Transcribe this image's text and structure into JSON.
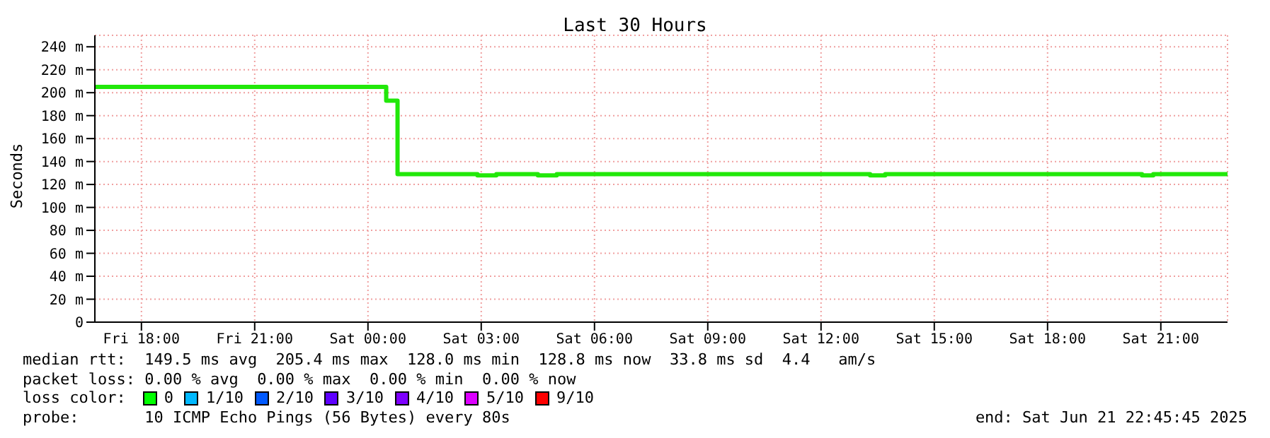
{
  "chart_data": {
    "type": "step",
    "title": "Last 30 Hours",
    "ylabel": "Seconds",
    "x": [
      "2025-06-20T16:46",
      "2025-06-20T17:30",
      "2025-06-20T18:18",
      "2025-06-20T19:12",
      "2025-06-20T20:00",
      "2025-06-20T21:00",
      "2025-06-20T21:48",
      "2025-06-20T22:36",
      "2025-06-20T23:30",
      "2025-06-21T00:06",
      "2025-06-21T00:29",
      "2025-06-21T00:47",
      "2025-06-21T01:30",
      "2025-06-21T02:18",
      "2025-06-21T02:54",
      "2025-06-21T03:24",
      "2025-06-21T04:00",
      "2025-06-21T04:30",
      "2025-06-21T05:00",
      "2025-06-21T05:24",
      "2025-06-21T06:12",
      "2025-06-21T07:00",
      "2025-06-21T09:00",
      "2025-06-21T11:00",
      "2025-06-21T13:18",
      "2025-06-21T13:42",
      "2025-06-21T15:00",
      "2025-06-21T17:00",
      "2025-06-21T18:30",
      "2025-06-21T19:00",
      "2025-06-21T20:30",
      "2025-06-21T20:48",
      "2025-06-21T22:46"
    ],
    "series": [
      {
        "color": "#22e80a",
        "values": [
          205,
          205,
          205,
          205,
          205,
          205,
          205,
          205,
          205,
          205,
          193,
          129,
          129,
          129,
          128,
          129,
          129,
          128,
          129,
          129,
          129,
          129,
          129,
          129,
          128,
          129,
          129,
          129,
          129,
          129,
          128,
          129,
          129
        ]
      }
    ],
    "xlim": [
      "2025-06-20T16:46",
      "2025-06-21T22:46"
    ],
    "xticks": [
      {
        "value": "2025-06-20T18:00",
        "label": "Fri 18:00"
      },
      {
        "value": "2025-06-20T21:00",
        "label": "Fri 21:00"
      },
      {
        "value": "2025-06-21T00:00",
        "label": "Sat 00:00"
      },
      {
        "value": "2025-06-21T03:00",
        "label": "Sat 03:00"
      },
      {
        "value": "2025-06-21T06:00",
        "label": "Sat 06:00"
      },
      {
        "value": "2025-06-21T09:00",
        "label": "Sat 09:00"
      },
      {
        "value": "2025-06-21T12:00",
        "label": "Sat 12:00"
      },
      {
        "value": "2025-06-21T15:00",
        "label": "Sat 15:00"
      },
      {
        "value": "2025-06-21T18:00",
        "label": "Sat 18:00"
      },
      {
        "value": "2025-06-21T21:00",
        "label": "Sat 21:00"
      }
    ],
    "ylim": [
      0,
      250
    ],
    "yticks": [
      0,
      {
        "value": 20,
        "label": "20 m"
      },
      {
        "value": 40,
        "label": "40 m"
      },
      {
        "value": 60,
        "label": "60 m"
      },
      {
        "value": 80,
        "label": "80 m"
      },
      {
        "value": 100,
        "label": "100 m"
      },
      {
        "value": 120,
        "label": "120 m"
      },
      {
        "value": 140,
        "label": "140 m"
      },
      {
        "value": 160,
        "label": "160 m"
      },
      {
        "value": 180,
        "label": "180 m"
      },
      {
        "value": 200,
        "label": "200 m"
      },
      {
        "value": 220,
        "label": "220 m"
      },
      {
        "value": 240,
        "label": "240 m"
      }
    ],
    "grid": true,
    "marker": "none",
    "line_style": "solid",
    "annotations": [
      "median rtt:  149.5 ms avg  205.4 ms max  128.0 ms min  128.8 ms now  33.8 ms sd  4.4   am/s",
      "packet loss: 0.00 % avg  0.00 % max  0.00 % min  0.00 % now",
      "loss color:",
      "0",
      "1/10",
      "2/10",
      "3/10",
      "4/10",
      "5/10",
      "9/10",
      "probe:       10 ICMP Echo Pings (56 Bytes) every 80s",
      "end: Sat Jun 21 22:45:45 2025"
    ]
  }
}
